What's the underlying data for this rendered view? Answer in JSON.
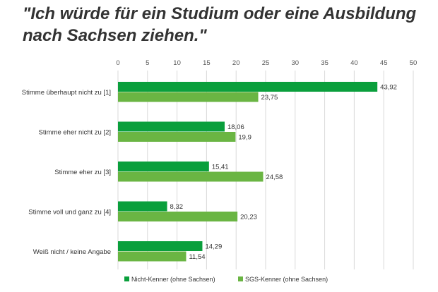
{
  "chart_data": {
    "type": "bar",
    "orientation": "horizontal",
    "title": "\"Ich würde für ein Studium oder eine Ausbildung nach Sachsen ziehen.\"",
    "categories": [
      "Stimme überhaupt nicht zu [1]",
      "Stimme eher nicht zu [2]",
      "Stimme eher zu [3]",
      "Stimme voll und ganz zu [4]",
      "Weiß nicht / keine Angabe"
    ],
    "series": [
      {
        "name": "Nicht-Kenner (ohne Sachsen)",
        "values": [
          43.92,
          18.06,
          15.41,
          8.32,
          14.29
        ],
        "labels": [
          "43,92",
          "18,06",
          "15,41",
          "8,32",
          "14,29"
        ],
        "color": "#0a9f3c"
      },
      {
        "name": "SGS-Kenner (ohne Sachsen)",
        "values": [
          23.75,
          19.9,
          24.58,
          20.23,
          11.54
        ],
        "labels": [
          "23,75",
          "19,9",
          "24,58",
          "20,23",
          "11,54"
        ],
        "color": "#6ab543"
      }
    ],
    "xlim": [
      0,
      50
    ],
    "xticks": [
      0,
      5,
      10,
      15,
      20,
      25,
      30,
      35,
      40,
      45,
      50
    ],
    "axis_position": "top",
    "grid": true,
    "legend_position": "bottom"
  }
}
